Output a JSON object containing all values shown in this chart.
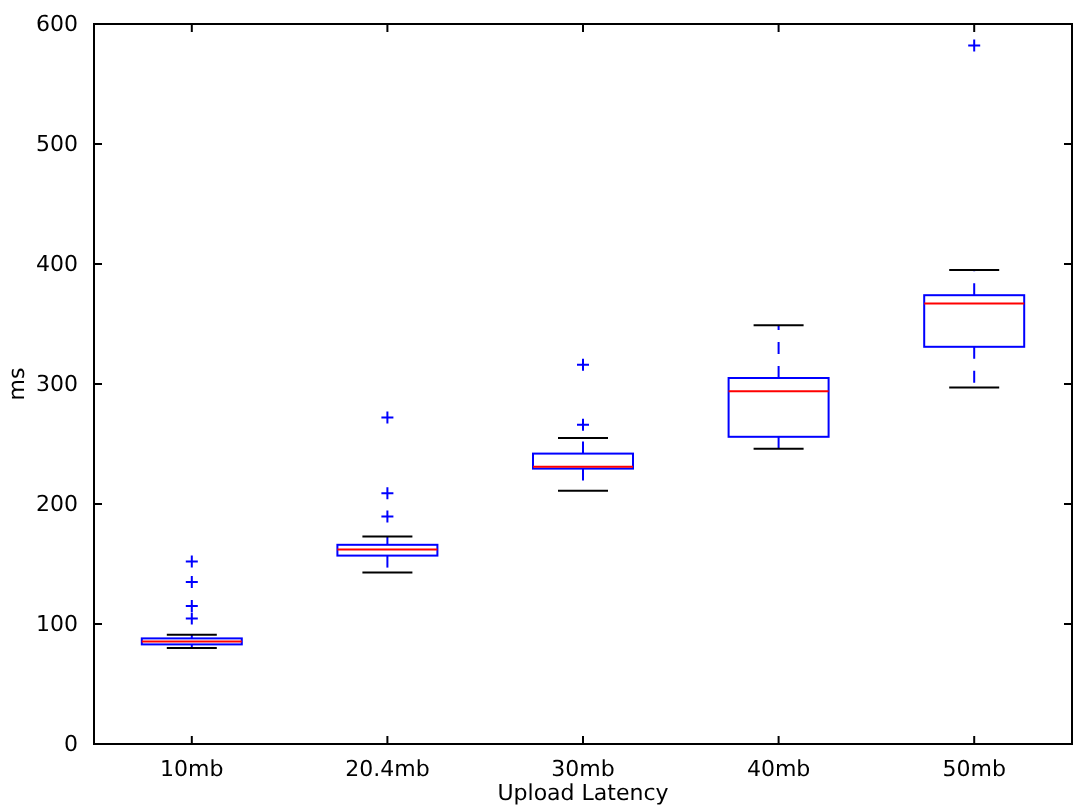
{
  "chart_data": {
    "type": "box",
    "xlabel": "Upload Latency",
    "ylabel": "ms",
    "categories": [
      "10mb",
      "20.4mb",
      "30mb",
      "40mb",
      "50mb"
    ],
    "boxes": [
      {
        "low": 80,
        "q1": 83,
        "median": 85.5,
        "q3": 88,
        "high": 91,
        "outliers": [
          104.5,
          115,
          135,
          152
        ]
      },
      {
        "low": 143,
        "q1": 157,
        "median": 162,
        "q3": 166,
        "high": 173,
        "outliers": [
          189.5,
          209,
          272
        ]
      },
      {
        "low": 211,
        "q1": 229.5,
        "median": 231,
        "q3": 242,
        "high": 255,
        "outliers": [
          266,
          316
        ]
      },
      {
        "low": 246,
        "q1": 256,
        "median": 294,
        "q3": 305,
        "high": 349
      },
      {
        "low": 297,
        "q1": 331,
        "median": 367,
        "q3": 374,
        "high": 395,
        "outliers": [
          582
        ]
      }
    ],
    "ylim": [
      0,
      600
    ],
    "yticks": [
      0,
      100,
      200,
      300,
      400,
      500,
      600
    ],
    "grid": false
  }
}
